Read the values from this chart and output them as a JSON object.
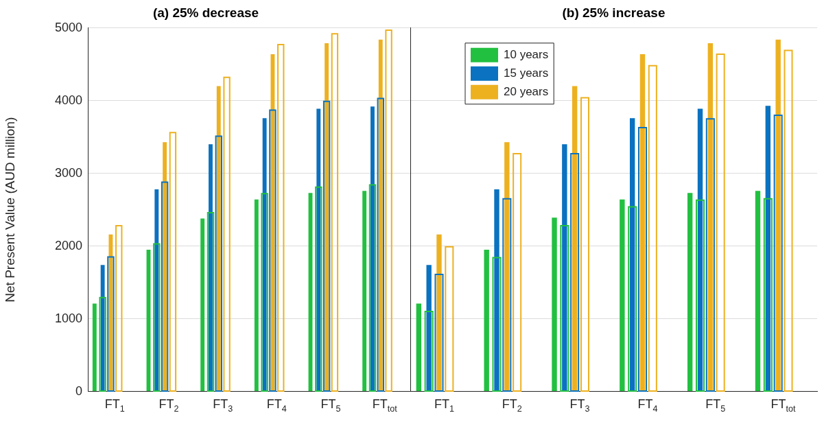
{
  "chart_data": [
    {
      "type": "bar",
      "title": "(a) 25% decrease",
      "ylabel": "Net Present Value (AUD million)",
      "categories": [
        "FT$_{1}$",
        "FT$_{2}$",
        "FT$_{3}$",
        "FT$_{4}$",
        "FT$_{5}$",
        "FT$_{tot}$"
      ],
      "ylim": [
        0,
        5000
      ],
      "yticks": [
        0,
        1000,
        2000,
        3000,
        4000,
        5000
      ],
      "grid": "y",
      "legend": false,
      "series": [
        {
          "color": "#22c040",
          "values": [
            1210,
            1950,
            2380,
            2640,
            2730,
            2760
          ]
        },
        {
          "color": "#0a72c0",
          "values": [
            1740,
            2780,
            3400,
            3760,
            3890,
            3920
          ]
        },
        {
          "color": "#edb120",
          "values": [
            2160,
            3430,
            4200,
            4640,
            4790,
            4840
          ]
        },
        {
          "color": "#22c040",
          "line_style": "solid",
          "values": [
            1300,
            2040,
            2470,
            2730,
            2820,
            2850
          ]
        },
        {
          "color": "#0a72c0",
          "line_style": "solid",
          "values": [
            1860,
            2890,
            3520,
            3880,
            4000,
            4040
          ]
        },
        {
          "color": "#edb120",
          "line_style": "solid",
          "values": [
            2290,
            3570,
            4330,
            4780,
            4930,
            4980
          ]
        }
      ]
    },
    {
      "type": "bar",
      "title": "(b) 25% increase",
      "categories": [
        "FT$_{1}$",
        "FT$_{2}$",
        "FT$_{3}$",
        "FT$_{4}$",
        "FT$_{5}$",
        "FT$_{tot}$"
      ],
      "ylim": [
        0,
        5000
      ],
      "yticks": [
        0,
        1000,
        2000,
        3000,
        4000,
        5000
      ],
      "grid": "y",
      "legend": "top left",
      "tick_labels": "x",
      "series": [
        {
          "name": "10 years",
          "color": "#22c040",
          "values": [
            1210,
            1950,
            2390,
            2640,
            2730,
            2760
          ]
        },
        {
          "name": "15 years",
          "color": "#0a72c0",
          "values": [
            1740,
            2780,
            3400,
            3760,
            3890,
            3930
          ]
        },
        {
          "name": "20 years",
          "color": "#edb120",
          "values": [
            2160,
            3430,
            4200,
            4640,
            4790,
            4840
          ]
        },
        {
          "color": "#22c040",
          "line_style": "solid",
          "values": [
            1110,
            1850,
            2290,
            2550,
            2640,
            2660
          ]
        },
        {
          "color": "#0a72c0",
          "line_style": "solid",
          "values": [
            1620,
            2660,
            3280,
            3640,
            3760,
            3810
          ]
        },
        {
          "color": "#edb120",
          "line_style": "solid",
          "values": [
            2000,
            3280,
            4050,
            4490,
            4650,
            4700
          ]
        }
      ]
    }
  ]
}
